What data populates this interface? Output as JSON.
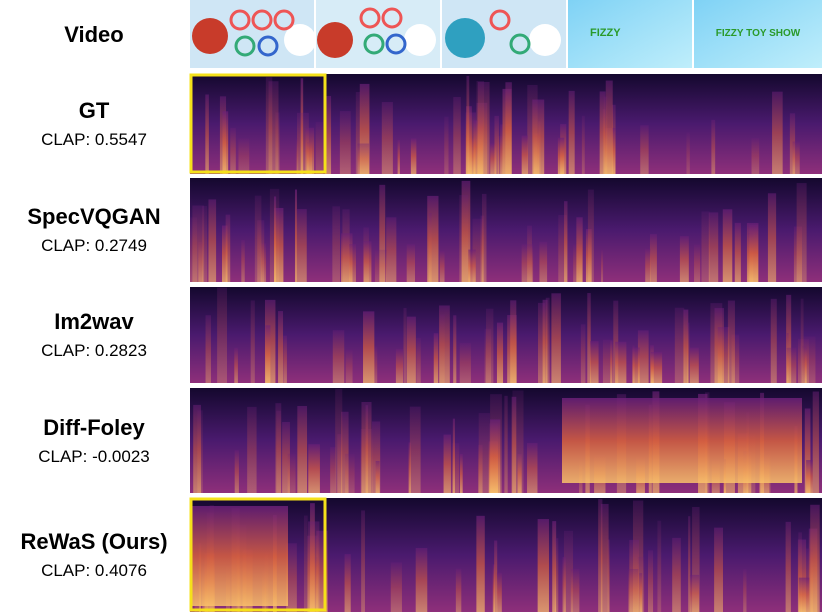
{
  "video": {
    "label": "Video",
    "frame_texts": [
      "FIZZY",
      "FIZZY TOY SHOW"
    ]
  },
  "rows": [
    {
      "name": "GT",
      "clap": "CLAP: 0.5547"
    },
    {
      "name": "SpecVQGAN",
      "clap": "CLAP: 0.2749"
    },
    {
      "name": "Im2wav",
      "clap": "CLAP: 0.2823"
    },
    {
      "name": "Diff-Foley",
      "clap": "CLAP: -0.0023"
    },
    {
      "name": "ReWaS (Ours)",
      "clap": "CLAP: 0.4076"
    }
  ]
}
